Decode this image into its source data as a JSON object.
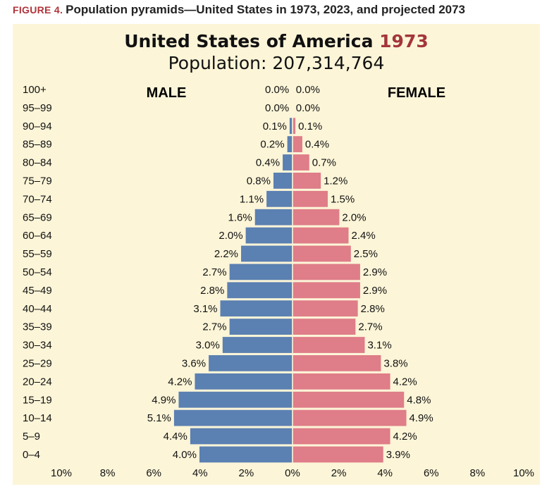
{
  "figure_label": "FIGURE 4.",
  "figure_caption": "Population pyramids—United  States in 1973, 2023, and projected 2073",
  "colors": {
    "male": "#5b80b2",
    "female": "#df7d88",
    "panel": "#fcf5d8",
    "year": "#a3363a"
  },
  "chart_data": {
    "type": "bar",
    "orientation": "horizontal-pyramid",
    "title": "United States of America",
    "title_year": "1973",
    "subtitle": "Population: 207,314,764",
    "legend": {
      "male": "MALE",
      "female": "FEMALE"
    },
    "categories": [
      "100+",
      "95–99",
      "90–94",
      "85–89",
      "80–84",
      "75–79",
      "70–74",
      "65–69",
      "60–64",
      "55–59",
      "50–54",
      "45–49",
      "40–44",
      "35–39",
      "30–34",
      "25–29",
      "20–24",
      "15–19",
      "10–14",
      "5–9",
      "0–4"
    ],
    "series": [
      {
        "name": "MALE",
        "values": [
          0.0,
          0.0,
          0.1,
          0.2,
          0.4,
          0.8,
          1.1,
          1.6,
          2.0,
          2.2,
          2.7,
          2.8,
          3.1,
          2.7,
          3.0,
          3.6,
          4.2,
          4.9,
          5.1,
          4.4,
          4.0
        ]
      },
      {
        "name": "FEMALE",
        "values": [
          0.0,
          0.0,
          0.1,
          0.4,
          0.7,
          1.2,
          1.5,
          2.0,
          2.4,
          2.5,
          2.9,
          2.9,
          2.8,
          2.7,
          3.1,
          3.8,
          4.2,
          4.8,
          4.9,
          4.2,
          3.9
        ]
      }
    ],
    "value_labels": {
      "male": [
        "0.0%",
        "0.0%",
        "0.1%",
        "0.2%",
        "0.4%",
        "0.8%",
        "1.1%",
        "1.6%",
        "2.0%",
        "2.2%",
        "2.7%",
        "2.8%",
        "3.1%",
        "2.7%",
        "3.0%",
        "3.6%",
        "4.2%",
        "4.9%",
        "5.1%",
        "4.4%",
        "4.0%"
      ],
      "female": [
        "0.0%",
        "0.0%",
        "0.1%",
        "0.4%",
        "0.7%",
        "1.2%",
        "1.5%",
        "2.0%",
        "2.4%",
        "2.5%",
        "2.9%",
        "2.9%",
        "2.8%",
        "2.7%",
        "3.1%",
        "3.8%",
        "4.2%",
        "4.8%",
        "4.9%",
        "4.2%",
        "3.9%"
      ]
    },
    "x_ticks": [
      -10,
      -8,
      -6,
      -4,
      -2,
      0,
      2,
      4,
      6,
      8,
      10
    ],
    "x_tick_labels": [
      "10%",
      "8%",
      "6%",
      "4%",
      "2%",
      "0%",
      "2%",
      "4%",
      "6%",
      "8%",
      "10%"
    ],
    "xlim": [
      -10,
      10
    ]
  }
}
